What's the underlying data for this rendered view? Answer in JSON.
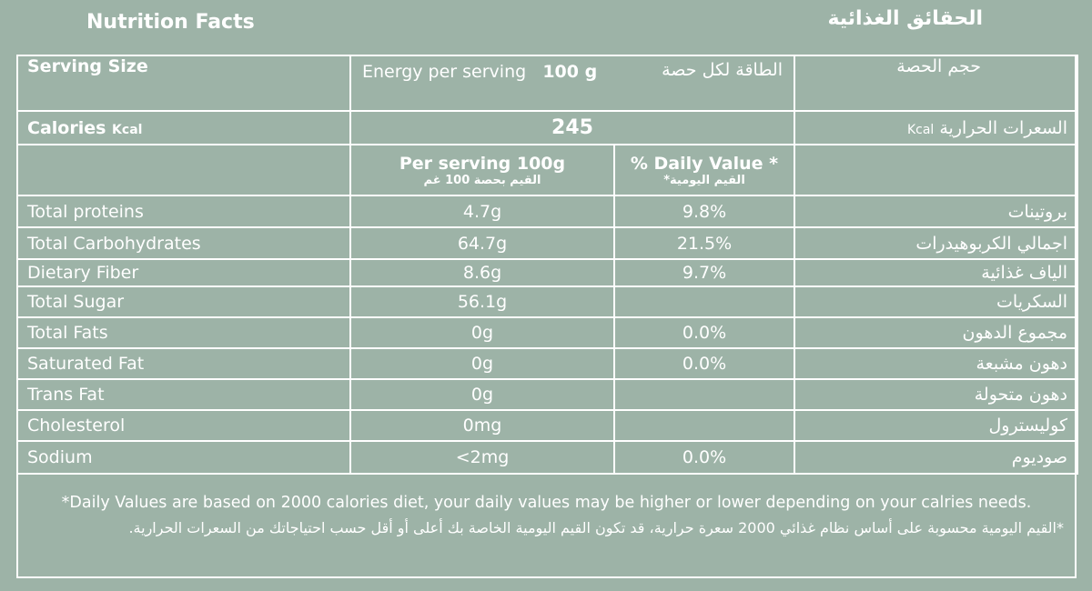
{
  "title_en": "Nutrition Facts",
  "title_ar": "الحقائق الغذائية",
  "serving": {
    "label_en": "Serving Size",
    "energy_label": "Energy per serving",
    "energy_value": "100 g",
    "energy_label_ar": "الطاقة لكل حصة",
    "label_ar": "حجم الحصة"
  },
  "calories": {
    "label_en": "Calories",
    "unit": "Kcal",
    "value": "245",
    "label_ar": "السعرات الحرارية",
    "unit_ar": "Kcal"
  },
  "headers": {
    "per_serving": "Per serving 100g",
    "per_serving_ar": "القيم بحصة 100 غم",
    "daily_value": "% Daily Value *",
    "daily_value_ar": "القيم اليومية*"
  },
  "rows": [
    {
      "en": "Total proteins",
      "amount": "4.7g",
      "dv": "9.8%",
      "ar": "بروتينات"
    },
    {
      "en": "Total Carbohydrates",
      "amount": "64.7g",
      "dv": "21.5%",
      "ar": "اجمالي الكربوهيدرات"
    },
    {
      "en": "Dietary Fiber",
      "amount": "8.6g",
      "dv": "9.7%",
      "ar": "الياف غذائية"
    },
    {
      "en": "Total Sugar",
      "amount": "56.1g",
      "dv": "",
      "ar": "السكريات"
    },
    {
      "en": "Total Fats",
      "amount": "0g",
      "dv": "0.0%",
      "ar": "مجموع الدهون"
    },
    {
      "en": "Saturated Fat",
      "amount": "0g",
      "dv": "0.0%",
      "ar": "دهون مشبعة"
    },
    {
      "en": "Trans Fat",
      "amount": "0g",
      "dv": "",
      "ar": "دهون متحولة"
    },
    {
      "en": "Cholesterol",
      "amount": "0mg",
      "dv": "",
      "ar": "كوليسترول"
    },
    {
      "en": "Sodium",
      "amount": "<2mg",
      "dv": "0.0%",
      "ar": "صوديوم"
    }
  ],
  "footnote_en": "*Daily Values are based on 2000 calories diet, your daily values may be higher or lower depending on your calries needs.",
  "footnote_ar": "*القيم اليومية محسوبة على أساس نظام غذائي 2000 سعرة حرارية، قد تكون القيم اليومية الخاصة بك أعلى أو أقل حسب احتياجاتك من السعرات الحرارية."
}
